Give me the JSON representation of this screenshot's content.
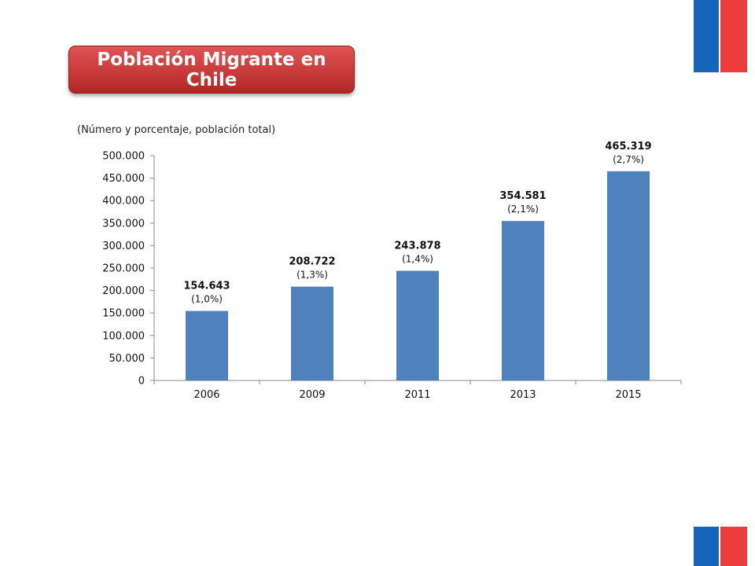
{
  "colors": {
    "flag_blue": "#1467b8",
    "flag_red": "#ee3b3b",
    "badge_top": "#e25454",
    "badge_bottom": "#b32626",
    "bar": "#4f81bd",
    "axis": "#8a8a8a"
  },
  "title": "Población Migrante en Chile",
  "chart_data": {
    "type": "bar",
    "subtitle": "(Número y porcentaje, población total)",
    "categories": [
      "2006",
      "2009",
      "2011",
      "2013",
      "2015"
    ],
    "values": [
      154643,
      208722,
      243878,
      354581,
      465319
    ],
    "value_labels": [
      "154.643",
      "208.722",
      "243.878",
      "354.581",
      "465.319"
    ],
    "percent_labels": [
      "(1,0%)",
      "(1,3%)",
      "(1,4%)",
      "(2,1%)",
      "(2,7%)"
    ],
    "y_ticks": [
      "0",
      "50.000",
      "100.000",
      "150.000",
      "200.000",
      "250.000",
      "300.000",
      "350.000",
      "400.000",
      "450.000",
      "500.000"
    ],
    "ylim": [
      0,
      500000
    ],
    "grid": false
  }
}
